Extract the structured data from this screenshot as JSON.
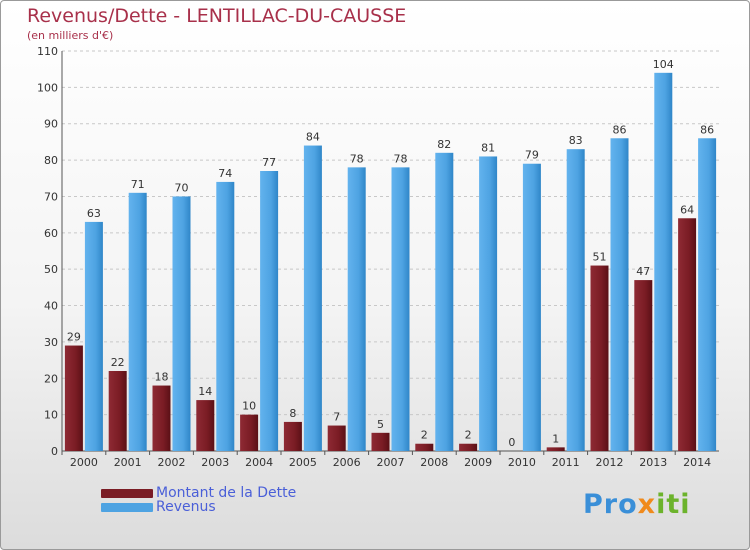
{
  "colors": {
    "dette": "#7a1c24",
    "revenus": "#4ea3e2",
    "title": "#a8304a",
    "legend_text": "#4a5fd8"
  },
  "chart_data": {
    "type": "bar",
    "title": "Revenus/Dette - LENTILLAC-DU-CAUSSE",
    "subtitle": "(en milliers d'€)",
    "categories": [
      "2000",
      "2001",
      "2002",
      "2003",
      "2004",
      "2005",
      "2006",
      "2007",
      "2008",
      "2009",
      "2010",
      "2011",
      "2012",
      "2013",
      "2014"
    ],
    "series": [
      {
        "name": "Montant de la Dette",
        "values": [
          29,
          22,
          18,
          14,
          10,
          8,
          7,
          5,
          2,
          2,
          0,
          1,
          51,
          47,
          64
        ]
      },
      {
        "name": "Revenus",
        "values": [
          63,
          71,
          70,
          74,
          77,
          84,
          78,
          78,
          82,
          81,
          79,
          83,
          86,
          104,
          86
        ]
      }
    ],
    "ylim": [
      0,
      110
    ],
    "yticks": [
      0,
      10,
      20,
      30,
      40,
      50,
      60,
      70,
      80,
      90,
      100,
      110
    ],
    "grid": true,
    "legend": "bottom-left"
  },
  "brand": {
    "parts": [
      "Pro",
      "x",
      "iti"
    ]
  }
}
